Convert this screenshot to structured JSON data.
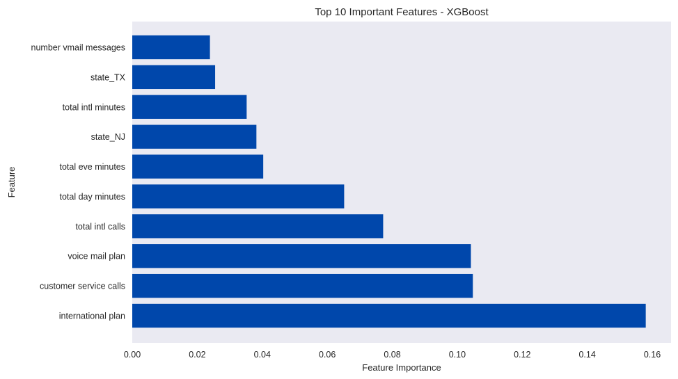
{
  "chart_data": {
    "type": "bar",
    "orientation": "horizontal",
    "title": "Top 10 Important Features - XGBoost",
    "xlabel": "Feature Importance",
    "ylabel": "Feature",
    "categories": [
      "international plan",
      "customer service calls",
      "voice mail plan",
      "total intl calls",
      "total day minutes",
      "total eve minutes",
      "state_NJ",
      "total intl minutes",
      "state_TX",
      "number vmail messages"
    ],
    "values": [
      0.158,
      0.1048,
      0.1042,
      0.0772,
      0.0652,
      0.0403,
      0.0382,
      0.0352,
      0.0255,
      0.0239
    ],
    "xlim": [
      0,
      0.1666
    ],
    "xticks": [
      "0.00",
      "0.02",
      "0.04",
      "0.06",
      "0.08",
      "0.10",
      "0.12",
      "0.14",
      "0.16"
    ],
    "grid": false,
    "bar_color": "#0047ab",
    "background_color": "#eaeaf2"
  }
}
